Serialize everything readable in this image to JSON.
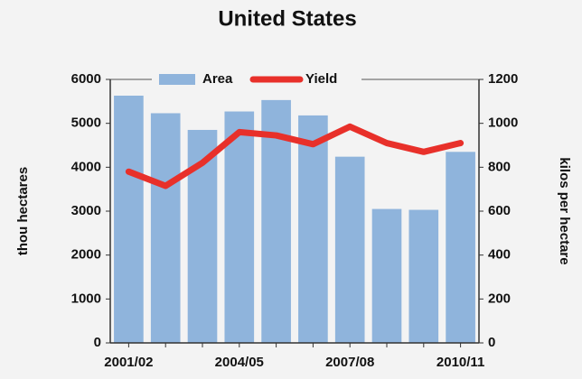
{
  "chart_data": {
    "type": "bar",
    "title": "United States",
    "categories": [
      "2001/02",
      null,
      null,
      "2004/05",
      null,
      null,
      "2007/08",
      null,
      null,
      "2010/11"
    ],
    "series": [
      {
        "name": "Area",
        "type": "bar",
        "color": "#8fb4dc",
        "values": [
          5630,
          5230,
          4850,
          5270,
          5530,
          5180,
          4240,
          3050,
          3030,
          4350
        ]
      },
      {
        "name": "Yield",
        "type": "line",
        "axis": "y2",
        "color": "#e8302a",
        "values": [
          780,
          715,
          820,
          960,
          945,
          905,
          985,
          910,
          870,
          910
        ]
      }
    ],
    "ylabel": "thou hectares",
    "y2label": "kilos per hectare",
    "ylim": [
      0,
      6000
    ],
    "yticks": [
      0,
      1000,
      2000,
      3000,
      4000,
      5000,
      6000
    ],
    "y2lim": [
      0,
      1200
    ],
    "y2ticks": [
      0,
      200,
      400,
      600,
      800,
      1000,
      1200
    ],
    "legend": "top"
  }
}
